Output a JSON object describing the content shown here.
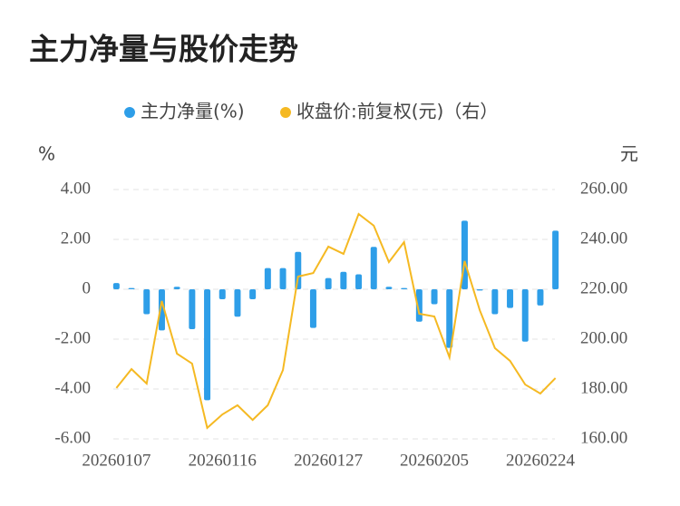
{
  "chart_data": {
    "type": "bar",
    "title": "主力净量与股价走势",
    "ylabel": "%",
    "y2label": "元",
    "categories": [
      "20260107",
      null,
      null,
      null,
      null,
      null,
      null,
      "20260116",
      null,
      null,
      null,
      null,
      null,
      null,
      "20260127",
      null,
      null,
      null,
      null,
      null,
      null,
      "20260205",
      null,
      null,
      null,
      null,
      null,
      null,
      "20260224",
      null
    ],
    "series": [
      {
        "name": "主力净量(%)",
        "type": "bar",
        "color": "#2e9ee8",
        "values": [
          0.25,
          0.05,
          -1.0,
          -1.65,
          0.1,
          -1.6,
          -4.45,
          -0.4,
          -1.1,
          -0.4,
          0.85,
          0.85,
          1.5,
          -1.55,
          0.45,
          0.7,
          0.6,
          1.7,
          0.1,
          0.05,
          -1.3,
          -0.6,
          -2.35,
          2.75,
          -0.05,
          -1.0,
          -0.75,
          -2.1,
          -0.65,
          2.35
        ]
      },
      {
        "name": "收盘价:前复权(元)（右）",
        "type": "line",
        "axis": "y2",
        "color": "#f5b922",
        "values": [
          180.4,
          188.0,
          182.2,
          215.3,
          194.2,
          190.2,
          164.4,
          169.8,
          173.5,
          167.6,
          173.5,
          187.6,
          225.1,
          226.5,
          237.1,
          234.2,
          250.2,
          245.5,
          230.9,
          238.9,
          210.2,
          209.1,
          192.7,
          231.3,
          211.6,
          196.4,
          191.3,
          181.8,
          178.2,
          184.4
        ]
      }
    ],
    "ylim": [
      -6,
      4
    ],
    "yticks": [
      {
        "value": -6,
        "label": "-6.00"
      },
      {
        "value": -4,
        "label": "-4.00"
      },
      {
        "value": -2,
        "label": "-2.00"
      },
      0,
      {
        "value": 2,
        "label": "2.00"
      },
      {
        "value": 4,
        "label": "4.00"
      }
    ],
    "y2lim": [
      160,
      260
    ],
    "y2ticks": [
      {
        "value": 160,
        "label": "160.00"
      },
      {
        "value": 180,
        "label": "180.00"
      },
      {
        "value": 200,
        "label": "200.00"
      },
      {
        "value": 220,
        "label": "220.00"
      },
      {
        "value": 240,
        "label": "240.00"
      },
      {
        "value": 260,
        "label": "260.00"
      }
    ],
    "grid": true,
    "legend": "top"
  }
}
